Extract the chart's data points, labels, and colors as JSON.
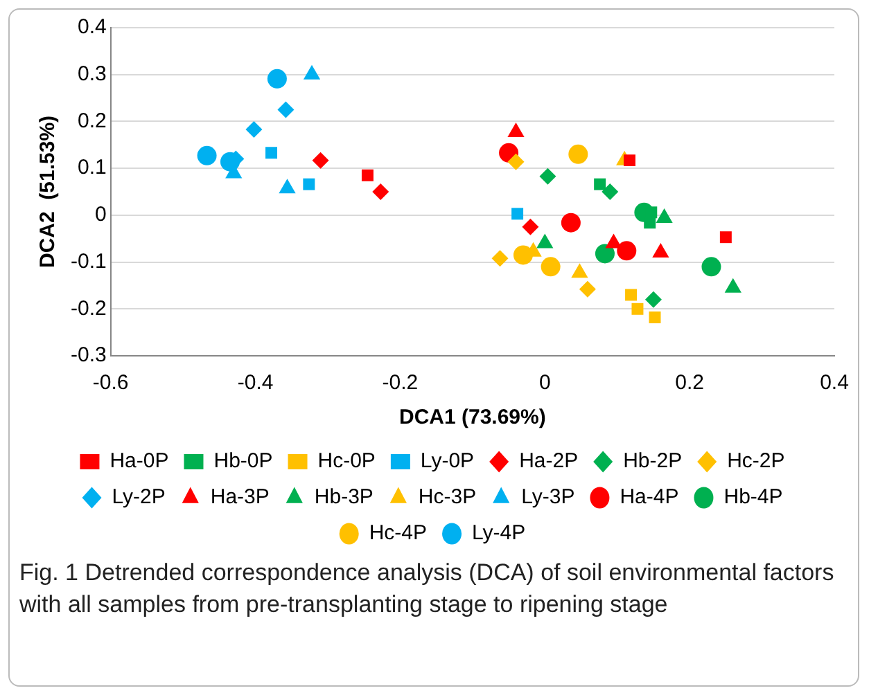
{
  "chart_data": {
    "type": "scatter",
    "xlabel": "DCA1 (73.69%)",
    "ylabel": "DCA2  (51.53%)",
    "xlim": [
      -0.6,
      0.4
    ],
    "xticks": [
      -0.6,
      -0.4,
      -0.2,
      0,
      0.2,
      0.4
    ],
    "ylim": [
      -0.3,
      0.4
    ],
    "yticks": [
      -0.3,
      -0.2,
      -0.1,
      0,
      0.1,
      0.2,
      0.3,
      0.4
    ],
    "grid": "y",
    "legend": "bottom",
    "annotations": [
      "Fig. 1 Detrended correspondence analysis (DCA) of soil environmental factors with all samples from pre-transplanting stage to ripening stage"
    ],
    "series": [
      {
        "name": "Ha-0P",
        "color": "#ff0000",
        "marker": "square",
        "x": [
          -0.245,
          0.117,
          0.25
        ],
        "values": [
          0.085,
          0.117,
          -0.047
        ]
      },
      {
        "name": "Hb-0P",
        "color": "#00b050",
        "marker": "square",
        "x": [
          0.076,
          0.147,
          0.145
        ],
        "values": [
          0.066,
          0.006,
          -0.016
        ]
      },
      {
        "name": "Hc-0P",
        "color": "#ffc000",
        "marker": "square",
        "x": [
          0.119,
          0.128,
          0.152
        ],
        "values": [
          -0.17,
          -0.2,
          -0.218
        ]
      },
      {
        "name": "Ly-0P",
        "color": "#00b0f0",
        "marker": "square",
        "x": [
          -0.038,
          -0.378,
          -0.326
        ],
        "values": [
          0.003,
          0.133,
          0.066
        ]
      },
      {
        "name": "Ha-2P",
        "color": "#ff0000",
        "marker": "diamond",
        "x": [
          -0.31,
          -0.227,
          -0.02
        ],
        "values": [
          0.117,
          0.05,
          -0.025
        ]
      },
      {
        "name": "Hb-2P",
        "color": "#00b050",
        "marker": "diamond",
        "x": [
          0.004,
          0.09,
          0.15
        ],
        "values": [
          0.083,
          0.05,
          -0.18
        ]
      },
      {
        "name": "Hc-2P",
        "color": "#ffc000",
        "marker": "diamond",
        "x": [
          -0.04,
          -0.062,
          0.059
        ],
        "values": [
          0.114,
          -0.092,
          -0.158
        ]
      },
      {
        "name": "Ly-2P",
        "color": "#00b0f0",
        "marker": "diamond",
        "x": [
          -0.358,
          -0.402,
          -0.427
        ],
        "values": [
          0.225,
          0.183,
          0.12
        ]
      },
      {
        "name": "Ha-3P",
        "color": "#ff0000",
        "marker": "triangle",
        "x": [
          -0.04,
          0.095,
          0.16
        ],
        "values": [
          0.177,
          -0.06,
          -0.08
        ]
      },
      {
        "name": "Hb-3P",
        "color": "#00b050",
        "marker": "triangle",
        "x": [
          0,
          0.165,
          0.26
        ],
        "values": [
          -0.06,
          -0.006,
          -0.155
        ]
      },
      {
        "name": "Hc-3P",
        "color": "#ffc000",
        "marker": "triangle",
        "x": [
          0.11,
          -0.016,
          0.048
        ],
        "values": [
          0.117,
          -0.078,
          -0.123
        ]
      },
      {
        "name": "Ly-3P",
        "color": "#00b0f0",
        "marker": "triangle",
        "x": [
          -0.322,
          -0.356,
          -0.43
        ],
        "values": [
          0.3,
          0.057,
          0.089
        ]
      },
      {
        "name": "Ha-4P",
        "color": "#ff0000",
        "marker": "circle",
        "x": [
          -0.05,
          0.036,
          0.113
        ],
        "values": [
          0.133,
          -0.016,
          -0.076
        ]
      },
      {
        "name": "Hb-4P",
        "color": "#00b050",
        "marker": "circle",
        "x": [
          0.137,
          0.083,
          0.23
        ],
        "values": [
          0.006,
          -0.082,
          -0.11
        ]
      },
      {
        "name": "Hc-4P",
        "color": "#ffc000",
        "marker": "circle",
        "x": [
          0.046,
          -0.03,
          0.008
        ],
        "values": [
          0.13,
          -0.085,
          -0.11
        ]
      },
      {
        "name": "Ly-4P",
        "color": "#00b0f0",
        "marker": "circle",
        "x": [
          -0.37,
          -0.467,
          -0.435
        ],
        "values": [
          0.291,
          0.127,
          0.114
        ]
      }
    ]
  }
}
